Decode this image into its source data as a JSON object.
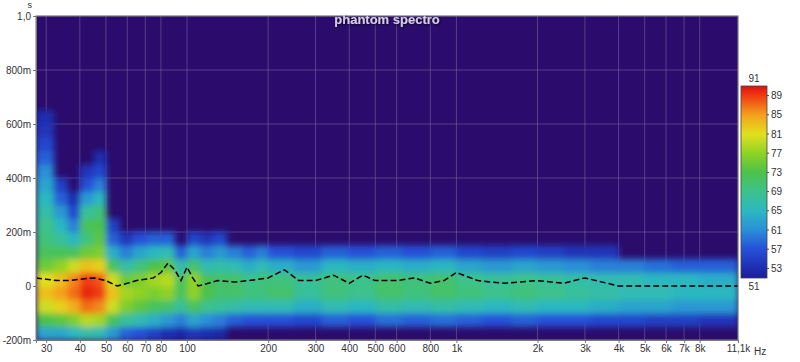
{
  "chart_data": {
    "type": "heatmap",
    "title": "phantom spectro",
    "x_label": "Hz",
    "y_label": "s",
    "log": "x",
    "grid": true,
    "xlim": [
      27.5,
      11100
    ],
    "ylim": [
      -0.2,
      1.0
    ],
    "xticks": [
      30,
      40,
      50,
      60,
      70,
      80,
      100,
      200,
      300,
      400,
      500,
      600,
      800,
      {
        "value": 1000,
        "label": "1k"
      },
      {
        "value": 2000,
        "label": "2k"
      },
      {
        "value": 3000,
        "label": "3k"
      },
      {
        "value": 4000,
        "label": "4k"
      },
      {
        "value": 5000,
        "label": "5k"
      },
      {
        "value": 6000,
        "label": "6k"
      },
      {
        "value": 7000,
        "label": "7k"
      },
      {
        "value": 8000,
        "label": "8k"
      },
      {
        "value": 11100,
        "label": "11,1k"
      }
    ],
    "yticks": [
      {
        "value": -0.2,
        "label": "-200m"
      },
      0,
      {
        "value": 0.2,
        "label": "200m"
      },
      {
        "value": 0.4,
        "label": "400m"
      },
      {
        "value": 0.6,
        "label": "600m"
      },
      {
        "value": 0.8,
        "label": "800m"
      },
      {
        "value": 1.0,
        "label": "1,0"
      }
    ],
    "x_edges": [
      27.5,
      32,
      36,
      40,
      45,
      50,
      56,
      63,
      71,
      80,
      90,
      100,
      112,
      125,
      140,
      160,
      180,
      200,
      250,
      315,
      400,
      500,
      630,
      800,
      1000,
      1250,
      1600,
      2000,
      2500,
      3150,
      4000,
      5000,
      6300,
      8000,
      11100
    ],
    "y_edges": [
      -0.2,
      -0.15,
      -0.1,
      -0.05,
      0,
      0.05,
      0.1,
      0.15,
      0.2,
      0.25,
      0.3,
      0.35,
      0.4,
      0.45,
      0.5,
      0.55,
      0.6,
      0.65
    ],
    "cells": [
      [
        63,
        63,
        65,
        67,
        66,
        62,
        58,
        57,
        55,
        53,
        52,
        54,
        53,
        52,
        null,
        null,
        null,
        null,
        null,
        null,
        null,
        null,
        null,
        null,
        null,
        null,
        null,
        null,
        null,
        null,
        null,
        null,
        null,
        null
      ],
      [
        73,
        74,
        76,
        79,
        78,
        72,
        68,
        66,
        64,
        62,
        60,
        63,
        61,
        60,
        58,
        57,
        57,
        57,
        56,
        58,
        57,
        59,
        58,
        59,
        58,
        57,
        58,
        57,
        57,
        56,
        56,
        55,
        55,
        54
      ],
      [
        80,
        82,
        84,
        87,
        86,
        80,
        76,
        74,
        72,
        71,
        68,
        72,
        69,
        68,
        67,
        66,
        66,
        66,
        64,
        66,
        65,
        67,
        66,
        67,
        66,
        65,
        66,
        65,
        65,
        64,
        63,
        63,
        62,
        62
      ],
      [
        83,
        85,
        87,
        90,
        89,
        83,
        78,
        77,
        76,
        77,
        72,
        77,
        73,
        71,
        71,
        70,
        70,
        71,
        68,
        70,
        69,
        71,
        70,
        71,
        70,
        69,
        70,
        69,
        68,
        67,
        66,
        66,
        65,
        65
      ],
      [
        81,
        83,
        86,
        89,
        88,
        80,
        75,
        76,
        78,
        79,
        72,
        77,
        72,
        71,
        71,
        69,
        70,
        70,
        68,
        70,
        69,
        71,
        70,
        71,
        69,
        68,
        69,
        68,
        67,
        66,
        66,
        65,
        65,
        64
      ],
      [
        75,
        77,
        80,
        83,
        82,
        72,
        67,
        70,
        73,
        74,
        66,
        71,
        66,
        67,
        66,
        64,
        66,
        64,
        62,
        65,
        64,
        65,
        64,
        65,
        63,
        62,
        63,
        62,
        61,
        60,
        60,
        59,
        58,
        58
      ],
      [
        72,
        72,
        72,
        75,
        76,
        64,
        60,
        63,
        65,
        66,
        58,
        63,
        60,
        62,
        60,
        58,
        60,
        57,
        56,
        58,
        57,
        58,
        57,
        58,
        56,
        55,
        56,
        55,
        54,
        54,
        null,
        null,
        null,
        null
      ],
      [
        70,
        68,
        65,
        70,
        74,
        58,
        54,
        57,
        58,
        58,
        null,
        56,
        54,
        56,
        null,
        null,
        null,
        null,
        null,
        null,
        null,
        null,
        null,
        null,
        null,
        null,
        null,
        null,
        null,
        null,
        null,
        null,
        null,
        null
      ],
      [
        69,
        65,
        60,
        72,
        73,
        55,
        null,
        null,
        null,
        null,
        null,
        null,
        null,
        null,
        null,
        null,
        null,
        null,
        null,
        null,
        null,
        null,
        null,
        null,
        null,
        null,
        null,
        null,
        null,
        null,
        null,
        null,
        null,
        null
      ],
      [
        67,
        62,
        56,
        68,
        70,
        null,
        null,
        null,
        null,
        null,
        null,
        null,
        null,
        null,
        null,
        null,
        null,
        null,
        null,
        null,
        null,
        null,
        null,
        null,
        null,
        null,
        null,
        null,
        null,
        null,
        null,
        null,
        null,
        null
      ],
      [
        65,
        58,
        53,
        62,
        65,
        null,
        null,
        null,
        null,
        null,
        null,
        null,
        null,
        null,
        null,
        null,
        null,
        null,
        null,
        null,
        null,
        null,
        null,
        null,
        null,
        null,
        null,
        null,
        null,
        null,
        null,
        null,
        null,
        null
      ],
      [
        63,
        55,
        null,
        57,
        60,
        null,
        null,
        null,
        null,
        null,
        null,
        null,
        null,
        null,
        null,
        null,
        null,
        null,
        null,
        null,
        null,
        null,
        null,
        null,
        null,
        null,
        null,
        null,
        null,
        null,
        null,
        null,
        null,
        null
      ],
      [
        61,
        null,
        null,
        54,
        56,
        null,
        null,
        null,
        null,
        null,
        null,
        null,
        null,
        null,
        null,
        null,
        null,
        null,
        null,
        null,
        null,
        null,
        null,
        null,
        null,
        null,
        null,
        null,
        null,
        null,
        null,
        null,
        null,
        null
      ],
      [
        58,
        null,
        null,
        null,
        53,
        null,
        null,
        null,
        null,
        null,
        null,
        null,
        null,
        null,
        null,
        null,
        null,
        null,
        null,
        null,
        null,
        null,
        null,
        null,
        null,
        null,
        null,
        null,
        null,
        null,
        null,
        null,
        null,
        null
      ],
      [
        56,
        null,
        null,
        null,
        null,
        null,
        null,
        null,
        null,
        null,
        null,
        null,
        null,
        null,
        null,
        null,
        null,
        null,
        null,
        null,
        null,
        null,
        null,
        null,
        null,
        null,
        null,
        null,
        null,
        null,
        null,
        null,
        null,
        null
      ],
      [
        54,
        null,
        null,
        null,
        null,
        null,
        null,
        null,
        null,
        null,
        null,
        null,
        null,
        null,
        null,
        null,
        null,
        null,
        null,
        null,
        null,
        null,
        null,
        null,
        null,
        null,
        null,
        null,
        null,
        null,
        null,
        null,
        null,
        null
      ],
      [
        53,
        null,
        null,
        null,
        null,
        null,
        null,
        null,
        null,
        null,
        null,
        null,
        null,
        null,
        null,
        null,
        null,
        null,
        null,
        null,
        null,
        null,
        null,
        null,
        null,
        null,
        null,
        null,
        null,
        null,
        null,
        null,
        null,
        null
      ]
    ],
    "colorbar_lim": [
      51,
      91
    ],
    "colorbar_ticks": [
      51,
      53,
      57,
      61,
      65,
      69,
      73,
      77,
      81,
      85,
      89,
      91
    ],
    "series": [
      {
        "type": "line",
        "color": "#000000",
        "line_style": "dashed",
        "x": [
          27.5,
          30,
          33,
          36,
          40,
          45,
          50,
          55,
          60,
          65,
          70,
          75,
          80,
          85,
          90,
          95,
          100,
          105,
          110,
          120,
          130,
          150,
          170,
          200,
          230,
          260,
          300,
          350,
          400,
          450,
          500,
          600,
          700,
          800,
          900,
          1000,
          1200,
          1500,
          2000,
          2500,
          3000,
          4000,
          5000,
          7000,
          9000,
          11100
        ],
        "values": [
          0.03,
          0.025,
          0.02,
          0.02,
          0.025,
          0.03,
          0.02,
          0.0,
          0.01,
          0.02,
          0.025,
          0.03,
          0.05,
          0.085,
          0.06,
          0.02,
          0.07,
          0.03,
          0.0,
          0.01,
          0.02,
          0.015,
          0.02,
          0.03,
          0.06,
          0.02,
          0.02,
          0.04,
          0.01,
          0.04,
          0.02,
          0.02,
          0.03,
          0.01,
          0.02,
          0.05,
          0.02,
          0.01,
          0.02,
          0.01,
          0.03,
          0.0,
          0.0,
          0.0,
          0.0,
          0.0
        ]
      }
    ]
  }
}
